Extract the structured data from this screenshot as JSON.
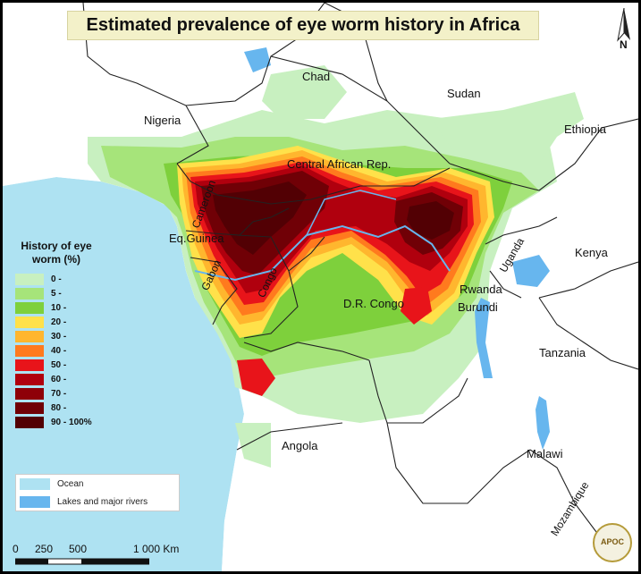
{
  "title": "Estimated prevalence of eye worm history in Africa",
  "north_label": "N",
  "countries": [
    {
      "name": "Chad"
    },
    {
      "name": "Sudan"
    },
    {
      "name": "Nigeria"
    },
    {
      "name": "Ethiopia"
    },
    {
      "name": "Central African Rep."
    },
    {
      "name": "Cameroon"
    },
    {
      "name": "Eq.Guinea"
    },
    {
      "name": "Gabon"
    },
    {
      "name": "Congo"
    },
    {
      "name": "Uganda"
    },
    {
      "name": "Kenya"
    },
    {
      "name": "Rwanda"
    },
    {
      "name": "Burundi"
    },
    {
      "name": "D.R. Congo"
    },
    {
      "name": "Tanzania"
    },
    {
      "name": "Angola"
    },
    {
      "name": "Malawi"
    },
    {
      "name": "Mozambique"
    }
  ],
  "legend": {
    "title": "History of eye worm (%)",
    "classes": [
      {
        "label": "0 -",
        "color": "#c8f0c0"
      },
      {
        "label": "5 -",
        "color": "#a6e47a"
      },
      {
        "label": "10 -",
        "color": "#7ed03c"
      },
      {
        "label": "20 -",
        "color": "#ffe14a"
      },
      {
        "label": "30 -",
        "color": "#ffb62e"
      },
      {
        "label": "40 -",
        "color": "#ff7a1e"
      },
      {
        "label": "50 -",
        "color": "#e8141a"
      },
      {
        "label": "60 -",
        "color": "#b0000e"
      },
      {
        "label": "70 -",
        "color": "#8e0008"
      },
      {
        "label": "80 -",
        "color": "#700006"
      },
      {
        "label": "90 - 100%",
        "color": "#520004"
      }
    ]
  },
  "base_legend": [
    {
      "label": "Ocean",
      "color": "#aee2f2"
    },
    {
      "label": "Lakes and major rivers",
      "color": "#67b6ee"
    }
  ],
  "scale": {
    "labels": [
      "0",
      "250",
      "500",
      "1 000 Km"
    ]
  },
  "logo_text": "APOC"
}
